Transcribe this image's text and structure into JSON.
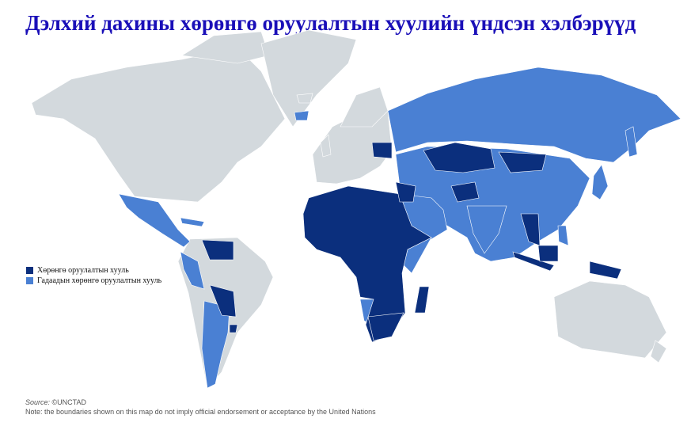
{
  "title": "Дэлхий дахины хөрөнгө оруулалтын хуулийн үндсэн хэлбэрүүд",
  "colors": {
    "title": "#1a0fb8",
    "no_law": "#d3d9dd",
    "investment_law": "#0b2f7d",
    "foreign_investment_law": "#4a80d3"
  },
  "legend": [
    {
      "label": "Хөрөнгө оруулалтын хууль",
      "color": "#0b2f7d"
    },
    {
      "label": "Гадаадын хөрөнгө оруулалтын хууль",
      "color": "#4a80d3"
    }
  ],
  "source_label": "Source:",
  "source_value": "©UNCTAD",
  "note": "Note: the boundaries shown on this map do not imply official endorsement or acceptance by the United Nations"
}
